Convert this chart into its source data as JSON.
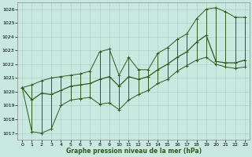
{
  "title": "Graphe pression niveau de la mer (hPa)",
  "bg_color": "#c8e8e0",
  "grid_color": "#b0d0c8",
  "line_color": "#2d5a1b",
  "ylim": [
    1016.5,
    1026.5
  ],
  "xlim": [
    -0.5,
    23.5
  ],
  "yticks": [
    1017,
    1018,
    1019,
    1020,
    1021,
    1022,
    1023,
    1024,
    1025,
    1026
  ],
  "xticks": [
    0,
    1,
    2,
    3,
    4,
    5,
    6,
    7,
    8,
    9,
    10,
    11,
    12,
    13,
    14,
    15,
    16,
    17,
    18,
    19,
    20,
    21,
    22,
    23
  ],
  "hours": [
    0,
    1,
    2,
    3,
    4,
    5,
    6,
    7,
    8,
    9,
    10,
    11,
    12,
    13,
    14,
    15,
    16,
    17,
    18,
    19,
    20,
    21,
    22,
    23
  ],
  "max_values": [
    1020.3,
    1020.5,
    1020.8,
    1021.0,
    1021.1,
    1021.2,
    1021.3,
    1021.5,
    1022.9,
    1023.1,
    1021.2,
    1022.5,
    1021.6,
    1021.6,
    1022.8,
    1023.2,
    1023.8,
    1024.2,
    1025.3,
    1026.0,
    1026.1,
    1025.8,
    1025.4,
    1025.4
  ],
  "min_values": [
    1020.3,
    1017.1,
    1017.0,
    1017.3,
    1019.0,
    1019.4,
    1019.5,
    1019.6,
    1019.1,
    1019.2,
    1018.7,
    1019.4,
    1019.8,
    1020.1,
    1020.6,
    1020.9,
    1021.5,
    1021.9,
    1022.3,
    1022.5,
    1022.0,
    1021.8,
    1021.7,
    1021.8
  ],
  "avg_values": [
    1020.3,
    1019.4,
    1019.9,
    1019.8,
    1020.1,
    1020.4,
    1020.5,
    1020.6,
    1020.9,
    1021.1,
    1020.4,
    1021.1,
    1020.9,
    1021.1,
    1021.6,
    1022.0,
    1022.5,
    1022.9,
    1023.6,
    1024.1,
    1022.2,
    1022.1,
    1022.1,
    1022.3
  ]
}
